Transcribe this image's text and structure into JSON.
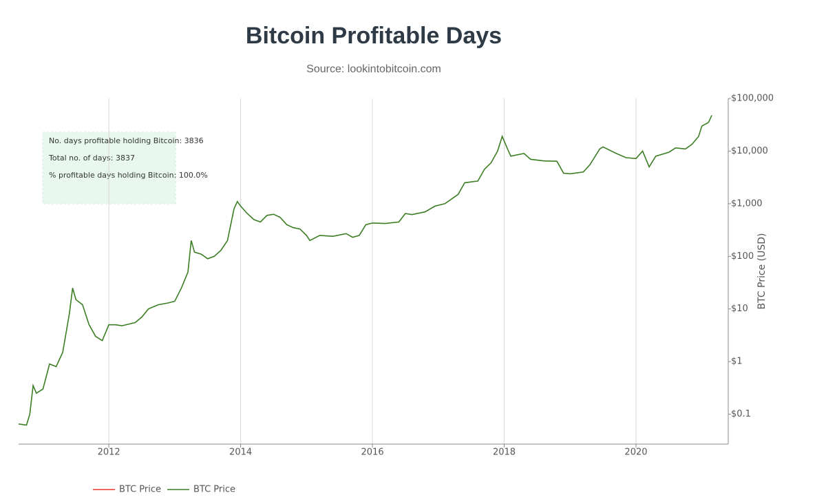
{
  "chart_data": {
    "type": "line",
    "title": "Bitcoin Profitable Days",
    "subtitle": "Source: lookintobitcoin.com",
    "y_axis_label": "BTC Price (USD)",
    "log_scale_y": true,
    "y_axis_side": "right",
    "grid_x": true,
    "legend_position": "bottom-left",
    "annotations": [
      "No. days profitable holding Bitcoin: 3836",
      "Total no. of days: 3837",
      "% profitable days holding Bitcoin: 100.0%"
    ],
    "x": [
      2010.63,
      2010.75,
      2010.8,
      2010.85,
      2010.9,
      2011.0,
      2011.1,
      2011.2,
      2011.3,
      2011.4,
      2011.45,
      2011.5,
      2011.6,
      2011.7,
      2011.8,
      2011.9,
      2012.0,
      2012.1,
      2012.2,
      2012.4,
      2012.5,
      2012.6,
      2012.75,
      2012.9,
      2013.0,
      2013.1,
      2013.2,
      2013.25,
      2013.3,
      2013.4,
      2013.5,
      2013.6,
      2013.7,
      2013.8,
      2013.9,
      2013.95,
      2014.0,
      2014.1,
      2014.2,
      2014.3,
      2014.4,
      2014.5,
      2014.6,
      2014.7,
      2014.8,
      2014.9,
      2015.0,
      2015.05,
      2015.2,
      2015.4,
      2015.6,
      2015.7,
      2015.8,
      2015.9,
      2016.0,
      2016.2,
      2016.4,
      2016.5,
      2016.6,
      2016.8,
      2016.95,
      2017.1,
      2017.3,
      2017.4,
      2017.6,
      2017.7,
      2017.8,
      2017.9,
      2017.97,
      2018.05,
      2018.1,
      2018.3,
      2018.4,
      2018.6,
      2018.8,
      2018.9,
      2019.0,
      2019.2,
      2019.3,
      2019.45,
      2019.5,
      2019.7,
      2019.85,
      2020.0,
      2020.1,
      2020.2,
      2020.3,
      2020.5,
      2020.6,
      2020.75,
      2020.85,
      2020.95,
      2021.0,
      2021.1,
      2021.15
    ],
    "series": [
      {
        "name": "BTC Price",
        "color": "#e8372c",
        "values": [
          null,
          null,
          null,
          null,
          null,
          null,
          null,
          null,
          null,
          null,
          null,
          null,
          null,
          null,
          null,
          null,
          null,
          null,
          null,
          null,
          null,
          null,
          null,
          null,
          null,
          null,
          null,
          null,
          null,
          null,
          null,
          null,
          null,
          null,
          null,
          null,
          null,
          null,
          null,
          null,
          null,
          null,
          null,
          null,
          null,
          null,
          null,
          null,
          null,
          null,
          null,
          null,
          null,
          null,
          null,
          null,
          null,
          null,
          null,
          null,
          null,
          null,
          null,
          null,
          null,
          null,
          null,
          null,
          null,
          null,
          null,
          null,
          null,
          null,
          null,
          null,
          null,
          null,
          null,
          null,
          null,
          null,
          null,
          null,
          null,
          null,
          null,
          null,
          null,
          null,
          null,
          null,
          null,
          null,
          null
        ]
      },
      {
        "name": "BTC Price",
        "color": "#3a7d22",
        "values": [
          0.065,
          0.062,
          0.1,
          0.35,
          0.25,
          0.3,
          0.9,
          0.8,
          1.5,
          8,
          25,
          15,
          12,
          5,
          3,
          2.5,
          5,
          5,
          4.8,
          5.5,
          7,
          10,
          12,
          13,
          14,
          25,
          50,
          200,
          120,
          110,
          90,
          100,
          130,
          200,
          800,
          1100,
          900,
          650,
          500,
          450,
          600,
          630,
          550,
          400,
          350,
          330,
          250,
          200,
          250,
          240,
          270,
          230,
          250,
          400,
          430,
          420,
          450,
          650,
          620,
          700,
          900,
          1000,
          1500,
          2500,
          2700,
          4500,
          6000,
          10000,
          19000,
          11000,
          8000,
          9000,
          7000,
          6500,
          6400,
          3800,
          3700,
          4000,
          5500,
          11000,
          12000,
          9000,
          7500,
          7200,
          10000,
          5000,
          8000,
          9500,
          11500,
          11000,
          13500,
          19000,
          30000,
          35000,
          48000
        ]
      }
    ],
    "xlim": [
      2010.63,
      2021.4
    ],
    "xticks": [
      2012,
      2014,
      2016,
      2018,
      2020
    ],
    "ylim": [
      0.027,
      100000
    ],
    "yticks": [
      {
        "value": 0.1,
        "label": "$0.1"
      },
      {
        "value": 1,
        "label": "$1"
      },
      {
        "value": 10,
        "label": "$10"
      },
      {
        "value": 100,
        "label": "$100"
      },
      {
        "value": 1000,
        "label": "$1,000"
      },
      {
        "value": 10000,
        "label": "$10,000"
      },
      {
        "value": 100000,
        "label": "$100,000"
      }
    ]
  }
}
